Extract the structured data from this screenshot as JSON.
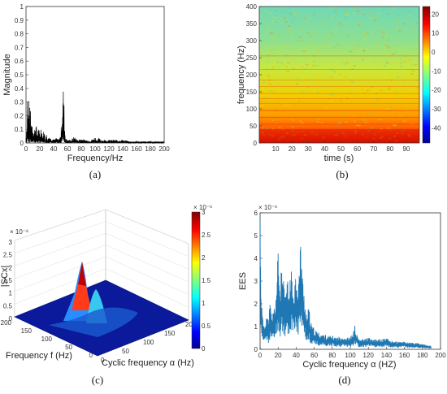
{
  "chart_data": [
    {
      "panel_label": "(a)",
      "type": "line",
      "xlabel": "Frequency/Hz",
      "ylabel": "Magnitude",
      "xlim": [
        0,
        200
      ],
      "ylim": [
        0,
        1
      ],
      "xticks": [
        "0",
        "20",
        "40",
        "60",
        "80",
        "100",
        "120",
        "140",
        "160",
        "180",
        "200"
      ],
      "yticks": [
        "0",
        "0.1",
        "0.2",
        "0.3",
        "0.4",
        "0.5",
        "0.6",
        "0.7",
        "0.8",
        "0.9",
        "1"
      ],
      "series": [
        {
          "color": "#000000",
          "x": [
            0,
            1,
            2,
            3,
            4,
            5,
            6,
            7,
            8,
            10,
            12,
            14,
            16,
            18,
            20,
            22,
            24,
            26,
            28,
            30,
            32,
            34,
            36,
            38,
            40,
            42,
            44,
            46,
            48,
            50,
            51,
            52,
            53,
            54,
            55,
            56,
            57,
            58,
            60,
            65,
            70,
            75,
            80,
            85,
            90,
            95,
            100,
            102,
            105,
            110,
            115,
            120,
            130,
            140,
            150,
            160,
            170,
            180,
            190,
            200
          ],
          "y": [
            0.05,
            0.12,
            0.36,
            0.2,
            0.34,
            0.15,
            0.3,
            0.1,
            0.18,
            0.12,
            0.08,
            0.14,
            0.07,
            0.1,
            0.06,
            0.12,
            0.05,
            0.08,
            0.04,
            0.06,
            0.03,
            0.05,
            0.03,
            0.04,
            0.03,
            0.02,
            0.04,
            0.02,
            0.03,
            0.05,
            0.1,
            0.2,
            0.33,
            0.36,
            0.25,
            0.12,
            0.05,
            0.03,
            0.02,
            0.02,
            0.04,
            0.02,
            0.03,
            0.02,
            0.02,
            0.02,
            0.04,
            0.02,
            0.03,
            0.02,
            0.02,
            0.02,
            0.02,
            0.02,
            0.01,
            0.01,
            0.01,
            0.01,
            0.01,
            0.01
          ]
        }
      ]
    },
    {
      "panel_label": "(b)",
      "type": "heatmap",
      "xlabel": "time (s)",
      "ylabel": "frequency (Hz)",
      "xlim": [
        0,
        98
      ],
      "ylim": [
        0,
        400
      ],
      "xticks": [
        "10",
        "20",
        "30",
        "40",
        "50",
        "60",
        "70",
        "80",
        "90"
      ],
      "yticks": [
        "0",
        "50",
        "100",
        "150",
        "200",
        "250",
        "300",
        "350",
        "400"
      ],
      "colorbar_ticks": [
        "20",
        "10",
        "0",
        "-10",
        "-20",
        "-30",
        "-40"
      ],
      "colorbar_range": [
        -48,
        24
      ]
    },
    {
      "panel_label": "(c)",
      "type": "surface",
      "zlabel": "|SCx|",
      "z_exponent": "× 10⁻⁶",
      "xlabel": "Cyclic frequency α (Hz)",
      "ylabel": "Frequency f (Hz)",
      "zticks": [
        "0",
        "0.5",
        "1",
        "1.5",
        "2",
        "2.5",
        "3"
      ],
      "f_ticks": [
        "200",
        "150",
        "100",
        "50",
        "0"
      ],
      "alpha_ticks": [
        "0",
        "50",
        "100",
        "150",
        "200"
      ],
      "colorbar_ticks": [
        "0",
        "0.5",
        "1",
        "1.5",
        "2",
        "2.5",
        "3"
      ],
      "colorbar_exponent": "× 10⁻⁶",
      "colorbar_range": [
        0,
        3
      ]
    },
    {
      "panel_label": "(d)",
      "type": "line",
      "xlabel": "Cyclic frequency α (HZ)",
      "ylabel": "EES",
      "y_exponent": "× 10⁻⁶",
      "xlim": [
        0,
        200
      ],
      "ylim": [
        0,
        6
      ],
      "xticks": [
        "0",
        "20",
        "40",
        "60",
        "80",
        "100",
        "120",
        "140",
        "160",
        "180",
        "200"
      ],
      "yticks": [
        "0",
        "1",
        "2",
        "3",
        "4",
        "5",
        "6"
      ],
      "series": [
        {
          "color": "#1f77b4",
          "x": [
            0,
            1,
            2,
            3,
            5,
            7,
            9,
            11,
            13,
            15,
            17,
            19,
            20,
            21,
            22,
            24,
            26,
            28,
            30,
            32,
            34,
            36,
            38,
            40,
            42,
            44,
            45,
            46,
            47,
            48,
            50,
            52,
            54,
            56,
            58,
            60,
            65,
            70,
            75,
            80,
            85,
            90,
            95,
            100,
            103,
            105,
            107,
            110,
            115,
            120,
            125,
            130,
            135,
            140,
            145,
            150,
            155,
            160,
            165,
            170,
            175,
            180,
            185,
            190
          ],
          "y": [
            4.3,
            2.0,
            1.3,
            0.9,
            0.8,
            1.1,
            0.9,
            1.4,
            1.0,
            1.2,
            1.5,
            2.2,
            3.1,
            2.4,
            1.8,
            2.5,
            2.0,
            1.6,
            2.2,
            1.7,
            2.5,
            1.9,
            2.0,
            2.4,
            2.0,
            2.6,
            3.4,
            2.8,
            2.2,
            1.9,
            1.4,
            1.0,
            1.3,
            0.8,
            0.7,
            0.6,
            0.5,
            0.45,
            0.4,
            0.4,
            0.35,
            0.4,
            0.35,
            0.35,
            0.5,
            0.7,
            0.45,
            0.3,
            0.3,
            0.35,
            0.28,
            0.3,
            0.3,
            0.35,
            0.25,
            0.25,
            0.22,
            0.25,
            0.2,
            0.2,
            0.18,
            0.16,
            0.12,
            0.1
          ]
        }
      ]
    }
  ]
}
